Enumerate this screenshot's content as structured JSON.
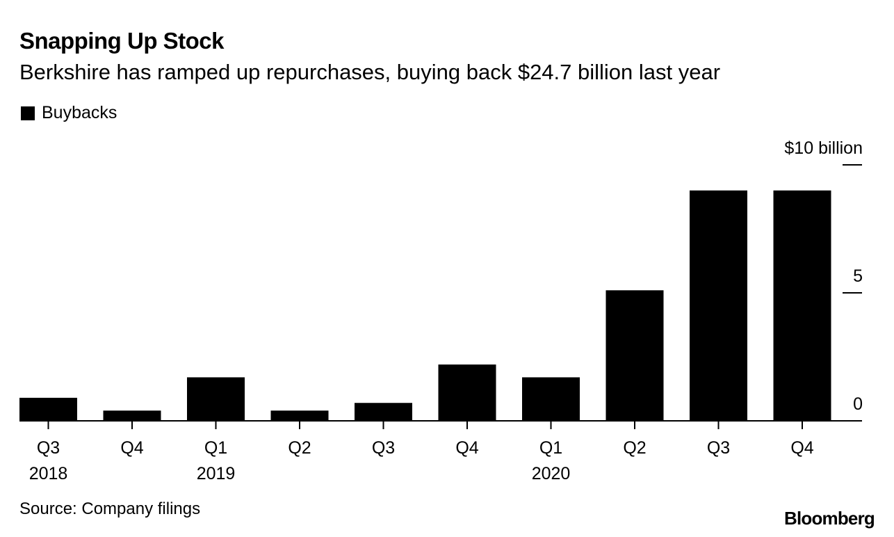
{
  "title": "Snapping Up Stock",
  "subtitle": "Berkshire has ramped up repurchases, buying back $24.7 billion last year",
  "legend": {
    "label": "Buybacks",
    "color": "#000000"
  },
  "source": "Source: Company filings",
  "logo": "Bloomberg",
  "chart_data": {
    "type": "bar",
    "title": "Snapping Up Stock",
    "subtitle": "Berkshire has ramped up repurchases, buying back $24.7 billion last year",
    "xlabel": "",
    "ylabel": "",
    "categories": [
      "Q3",
      "Q4",
      "Q1",
      "Q2",
      "Q3",
      "Q4",
      "Q1",
      "Q2",
      "Q3",
      "Q4"
    ],
    "year_labels": [
      "2018",
      "",
      "2019",
      "",
      "",
      "",
      "2020",
      "",
      "",
      ""
    ],
    "series": [
      {
        "name": "Buybacks",
        "color": "#000000",
        "values": [
          0.9,
          0.4,
          1.7,
          0.4,
          0.7,
          2.2,
          1.7,
          5.1,
          9.0,
          9.0
        ]
      }
    ],
    "ylim": [
      0,
      10
    ],
    "y_ticks": [
      {
        "value": 10,
        "label": "$10 billion"
      },
      {
        "value": 5,
        "label": "5"
      },
      {
        "value": 0,
        "label": "0"
      }
    ],
    "grid": false,
    "legend_position": "top-left",
    "y_axis_side": "right"
  }
}
